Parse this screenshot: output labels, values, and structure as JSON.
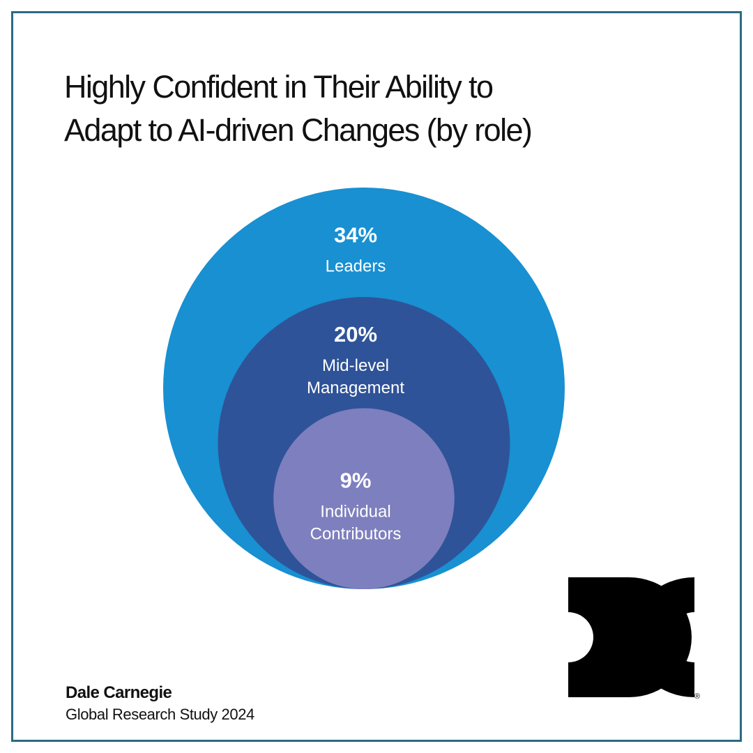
{
  "title": {
    "line1": "Highly Confident in Their Ability to",
    "line2": "Adapt to AI-driven Changes (by role)"
  },
  "chart_data": {
    "type": "nested-bubble",
    "title": "Highly Confident in Their Ability to Adapt to AI-driven Changes (by role)",
    "unit": "%",
    "items": [
      {
        "category": "Leaders",
        "label_lines": [
          "Leaders"
        ],
        "value": 34,
        "value_label": "34%",
        "color": "#1890d2"
      },
      {
        "category": "Mid-level Management",
        "label_lines": [
          "Mid-level",
          "Management"
        ],
        "value": 20,
        "value_label": "20%",
        "color": "#2f5398"
      },
      {
        "category": "Individual Contributors",
        "label_lines": [
          "Individual",
          "Contributors"
        ],
        "value": 9,
        "value_label": "9%",
        "color": "#7e7fbe"
      }
    ]
  },
  "footer": {
    "brand": "Dale Carnegie",
    "study": "Global Research Study 2024"
  },
  "logo": {
    "icon": "dale-carnegie-dc-logo-icon",
    "color": "#000000",
    "registered_mark": "®"
  },
  "colors": {
    "frame": "#2a6a84",
    "text": "#111111"
  }
}
